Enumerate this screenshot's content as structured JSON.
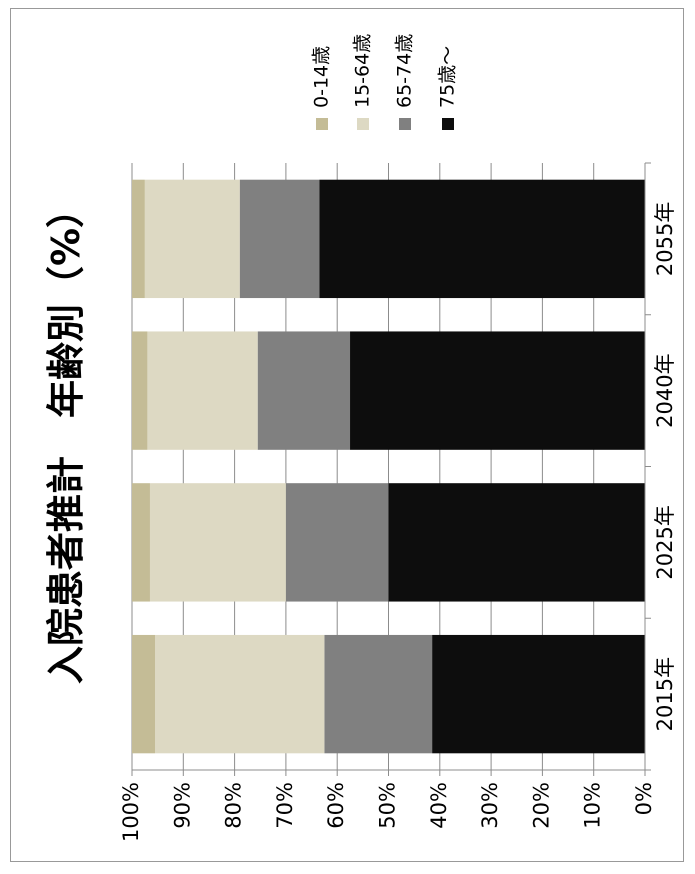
{
  "chart_data": {
    "type": "bar",
    "stacked": true,
    "orientation": "vertical-bars-rotated-page",
    "title": "入院患者推計　年齢別（%）",
    "categories": [
      "2015年",
      "2025年",
      "2040年",
      "2055年"
    ],
    "series": [
      {
        "name": "0-14歳",
        "color": "#c4bc96",
        "values": [
          4.5,
          3.5,
          3.0,
          2.5
        ]
      },
      {
        "name": "15-64歳",
        "color": "#ddd9c3",
        "values": [
          33.0,
          26.5,
          21.5,
          18.5
        ]
      },
      {
        "name": "65-74歳",
        "color": "#808080",
        "values": [
          21.0,
          20.0,
          18.0,
          15.5
        ]
      },
      {
        "name": "75歳～",
        "color": "#0d0d0d",
        "values": [
          41.5,
          50.0,
          57.5,
          63.5
        ]
      }
    ],
    "ylim": [
      0,
      100
    ],
    "yticks": [
      "0%",
      "10%",
      "20%",
      "30%",
      "40%",
      "50%",
      "60%",
      "70%",
      "80%",
      "90%",
      "100%"
    ],
    "grid": true,
    "legend_position": "top-right"
  }
}
